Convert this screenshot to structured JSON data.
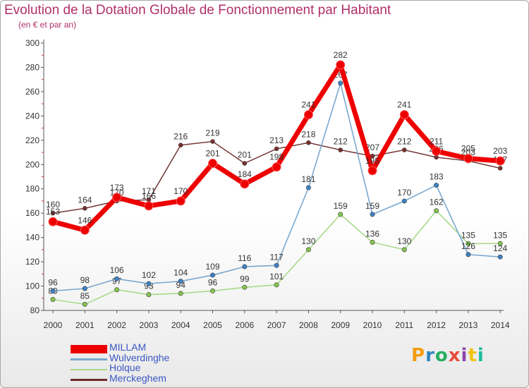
{
  "title": "Evolution de la Dotation Globale de Fonctionnement par Habitant",
  "subtitle": "(en € et par an)",
  "logo": {
    "text": "Proxiti",
    "colors": [
      "#f39c12",
      "#2e86c1",
      "#27ae60",
      "#e74c3c",
      "#8e44ad",
      "#f1c40f",
      "#1abc9c"
    ]
  },
  "chart_data": {
    "type": "line",
    "title": "Evolution de la Dotation Globale de Fonctionnement par Habitant",
    "subtitle": "(en € et par an)",
    "xlabel": "",
    "ylabel": "",
    "ylim": [
      80,
      300
    ],
    "yticks": [
      80,
      100,
      120,
      140,
      160,
      180,
      200,
      220,
      240,
      260,
      280,
      300
    ],
    "grid": false,
    "legend_position": "bottom-left",
    "x": [
      "2000",
      "2001",
      "2002",
      "2003",
      "2004",
      "2005",
      "2006",
      "2007",
      "2008",
      "2009",
      "2010",
      "2011",
      "2012",
      "2013",
      "2014"
    ],
    "series": [
      {
        "name": "Merckeghem",
        "color": "#6b2a2a",
        "marker": "#7a2e2e",
        "width": 1.4,
        "r": 3,
        "values": [
          160,
          164,
          170,
          171,
          216,
          219,
          201,
          213,
          218,
          212,
          207,
          212,
          206,
          203,
          197
        ],
        "labels": [
          "160",
          "164",
          "170",
          "171",
          "216",
          "219",
          "201",
          "213",
          "218",
          "212",
          "207",
          "212",
          "206",
          "203",
          "197"
        ]
      },
      {
        "name": "Holque",
        "color": "#a8d98a",
        "marker": "#84c44e",
        "width": 1.6,
        "r": 3.2,
        "values": [
          89,
          85,
          97,
          93,
          94,
          96,
          99,
          101,
          130,
          159,
          136,
          130,
          162,
          135,
          135
        ],
        "labels": [
          "89",
          "85",
          "97",
          "93",
          "94",
          "96",
          "99",
          "101",
          "130",
          "159",
          "136",
          "130",
          "162",
          "135",
          "135"
        ]
      },
      {
        "name": "Wulverdinghe",
        "color": "#7aa8cf",
        "marker": "#3c82c4",
        "width": 1.6,
        "r": 3.2,
        "values": [
          96,
          98,
          106,
          102,
          104,
          109,
          116,
          117,
          181,
          267,
          159,
          170,
          183,
          126,
          124
        ],
        "labels": [
          "96",
          "98",
          "106",
          "102",
          "104",
          "109",
          "116",
          "117",
          "181",
          "267",
          "159",
          "170",
          "183",
          "126",
          "124"
        ]
      },
      {
        "name": "MILLAM",
        "color": "#ee0000",
        "marker": "#ee0000",
        "width": 7,
        "r": 6,
        "values": [
          153,
          146,
          173,
          166,
          170,
          201,
          184,
          198,
          241,
          282,
          195,
          241,
          211,
          205,
          203
        ],
        "labels": [
          "153",
          "146",
          "173",
          "166",
          "170",
          "201",
          "184",
          "198",
          "241",
          "282",
          "195",
          "241",
          "211",
          "205",
          "203"
        ]
      }
    ],
    "legend": [
      "MILLAM",
      "Wulverdinghe",
      "Holque",
      "Merckeghem"
    ]
  }
}
